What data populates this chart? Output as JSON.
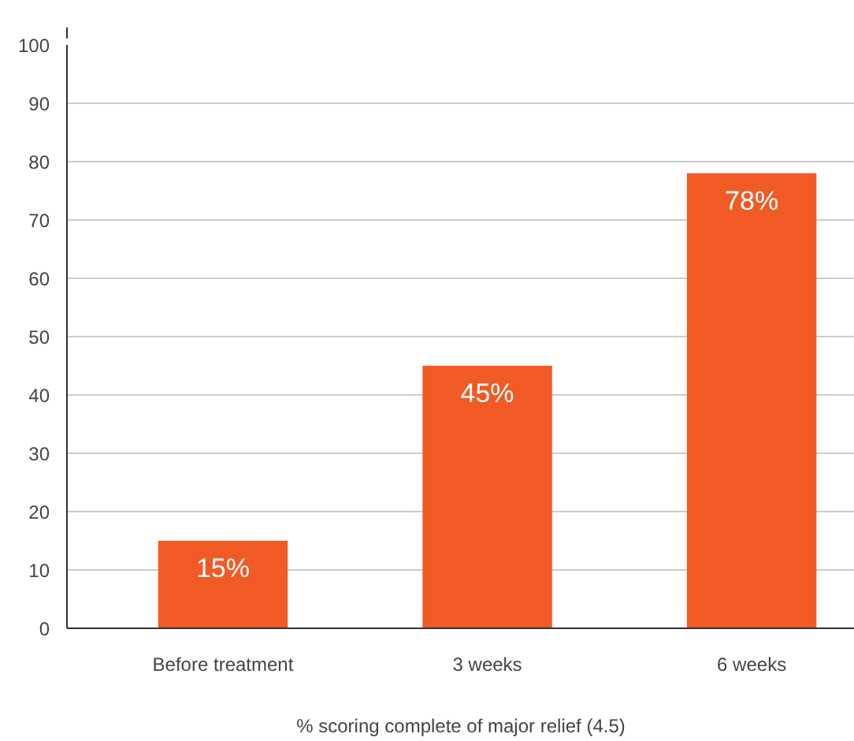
{
  "chart_data": {
    "type": "bar",
    "categories": [
      "Before treatment",
      "3 weeks",
      "6 weeks"
    ],
    "values": [
      15,
      45,
      78
    ],
    "value_labels": [
      "15%",
      "45%",
      "78%"
    ],
    "color": "#f15a24",
    "xlabel": "% scoring complete of major relief (4.5)",
    "ylim": [
      0,
      100
    ],
    "yticks": [
      0,
      10,
      20,
      30,
      40,
      50,
      60,
      70,
      80,
      90,
      100
    ],
    "grid": "y"
  }
}
